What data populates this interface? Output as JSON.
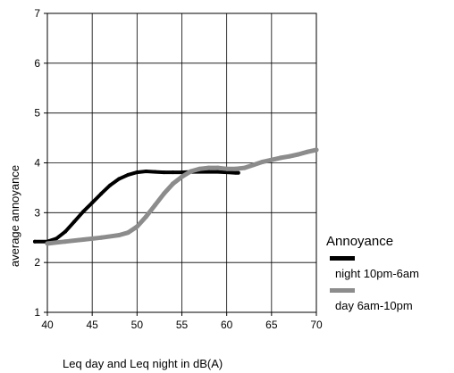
{
  "chart_data": {
    "type": "line",
    "title": "",
    "xlabel": "Leq day and Leq night in dB(A)",
    "ylabel": "average annoyance",
    "xlim": [
      40,
      70
    ],
    "ylim": [
      1,
      7
    ],
    "xticks": [
      40,
      45,
      50,
      55,
      60,
      65,
      70
    ],
    "yticks": [
      1,
      2,
      3,
      4,
      5,
      6,
      7
    ],
    "grid": true,
    "legend": {
      "title": "Annoyance",
      "position": "right"
    },
    "series": [
      {
        "name": "night 10pm-6am",
        "color": "#000000",
        "x": [
          38.6,
          40,
          41,
          42,
          43,
          44,
          45,
          46,
          47,
          48,
          49,
          50,
          51,
          52,
          53,
          54,
          55,
          56,
          57,
          58,
          59,
          60,
          61,
          61.3
        ],
        "y": [
          2.42,
          2.42,
          2.48,
          2.62,
          2.82,
          3.02,
          3.2,
          3.38,
          3.55,
          3.68,
          3.76,
          3.81,
          3.83,
          3.82,
          3.81,
          3.81,
          3.81,
          3.82,
          3.82,
          3.82,
          3.82,
          3.81,
          3.8,
          3.8
        ]
      },
      {
        "name": "day 6am-10pm",
        "color": "#8c8c8c",
        "x": [
          40,
          42,
          44,
          46,
          48,
          49,
          50,
          51,
          52,
          53,
          54,
          55,
          56,
          57,
          58,
          59,
          60,
          61,
          62,
          63,
          64,
          65,
          66,
          67,
          68,
          69,
          70
        ],
        "y": [
          2.38,
          2.42,
          2.46,
          2.5,
          2.55,
          2.6,
          2.72,
          2.92,
          3.15,
          3.38,
          3.58,
          3.72,
          3.83,
          3.88,
          3.9,
          3.9,
          3.88,
          3.88,
          3.9,
          3.96,
          4.02,
          4.06,
          4.1,
          4.13,
          4.17,
          4.22,
          4.26
        ]
      }
    ]
  }
}
